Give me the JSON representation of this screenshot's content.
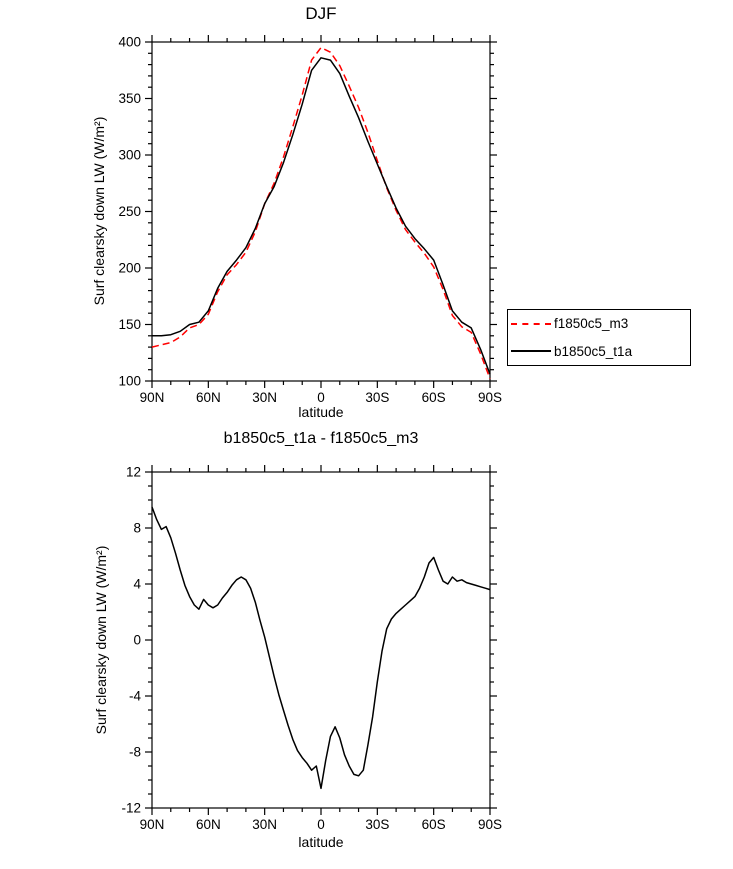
{
  "page": {
    "background": "#ffffff"
  },
  "chart_data": [
    {
      "type": "line",
      "title": "DJF",
      "xlabel": "latitude",
      "ylabel": "Surf clearsky down LW (W/m²)",
      "xlim": [
        90,
        -90
      ],
      "ylim": [
        100,
        400
      ],
      "x_major": [
        90,
        60,
        30,
        0,
        -30,
        -60,
        -90
      ],
      "x_tick_labels": [
        "90N",
        "60N",
        "30N",
        "0",
        "30S",
        "60S",
        "90S"
      ],
      "x_minor_step": 10,
      "y_major_step": 50,
      "y_minor_step": 10,
      "grid": false,
      "legend_position": "outside-right",
      "x": [
        90,
        85,
        80,
        75,
        70,
        65,
        60,
        55,
        50,
        45,
        40,
        35,
        30,
        25,
        20,
        15,
        10,
        5,
        0,
        -5,
        -10,
        -15,
        -20,
        -25,
        -30,
        -35,
        -40,
        -45,
        -50,
        -55,
        -60,
        -65,
        -70,
        -75,
        -80,
        -85,
        -90
      ],
      "series": [
        {
          "name": "f1850c5_m3",
          "color": "#ff0000",
          "dash": "7,4",
          "values": [
            130,
            132,
            134,
            139,
            147,
            150,
            159,
            179,
            194,
            203,
            214,
            232,
            257,
            275,
            298,
            325,
            353,
            384,
            395,
            391,
            379,
            361,
            342,
            320,
            295,
            271,
            251,
            234,
            223,
            213,
            201,
            181,
            158,
            148,
            143,
            124,
            102
          ]
        },
        {
          "name": "b1850c5_t1a",
          "color": "#000000",
          "dash": "",
          "values": [
            140,
            140,
            141,
            144,
            150,
            152,
            162,
            182,
            197,
            207,
            218,
            235,
            257,
            272,
            293,
            318,
            345,
            375,
            386,
            384,
            372,
            352,
            333,
            312,
            292,
            272,
            253,
            237,
            226,
            217,
            207,
            185,
            162,
            152,
            147,
            128,
            106
          ]
        }
      ]
    },
    {
      "type": "line",
      "title": "b1850c5_t1a - f1850c5_m3",
      "xlabel": "latitude",
      "ylabel": "Surf clearsky down LW (W/m²)",
      "xlim": [
        90,
        -90
      ],
      "ylim": [
        -12,
        12
      ],
      "x_major": [
        90,
        60,
        30,
        0,
        -30,
        -60,
        -90
      ],
      "x_tick_labels": [
        "90N",
        "60N",
        "30N",
        "0",
        "30S",
        "60S",
        "90S"
      ],
      "x_minor_step": 10,
      "y_major_step": 4,
      "y_minor_step": 1,
      "grid": false,
      "legend_position": "none",
      "x": [
        90,
        87.5,
        85,
        82.5,
        80,
        77.5,
        75,
        72.5,
        70,
        67.5,
        65,
        62.5,
        60,
        57.5,
        55,
        52.5,
        50,
        47.5,
        45,
        42.5,
        40,
        37.5,
        35,
        32.5,
        30,
        27.5,
        25,
        22.5,
        20,
        17.5,
        15,
        12.5,
        10,
        7.5,
        5,
        2.5,
        0,
        -2.5,
        -5,
        -7.5,
        -10,
        -12.5,
        -15,
        -17.5,
        -20,
        -22.5,
        -25,
        -27.5,
        -30,
        -32.5,
        -35,
        -37.5,
        -40,
        -42.5,
        -45,
        -47.5,
        -50,
        -52.5,
        -55,
        -57.5,
        -60,
        -62.5,
        -65,
        -67.5,
        -70,
        -72.5,
        -75,
        -77.5,
        -80,
        -82.5,
        -85,
        -87.5,
        -90
      ],
      "series": [
        {
          "name": "b1850c5_t1a - f1850c5_m3",
          "color": "#000000",
          "dash": "",
          "values": [
            9.5,
            8.6,
            7.9,
            8.1,
            7.3,
            6.2,
            5.0,
            3.9,
            3.1,
            2.5,
            2.2,
            2.9,
            2.5,
            2.3,
            2.5,
            3.0,
            3.4,
            3.9,
            4.3,
            4.5,
            4.3,
            3.7,
            2.7,
            1.4,
            0.2,
            -1.2,
            -2.6,
            -3.9,
            -5.0,
            -6.1,
            -7.1,
            -7.9,
            -8.4,
            -8.8,
            -9.3,
            -9.0,
            -10.6,
            -8.6,
            -6.9,
            -6.2,
            -7.0,
            -8.2,
            -9.0,
            -9.6,
            -9.7,
            -9.3,
            -7.5,
            -5.5,
            -3.0,
            -0.8,
            0.8,
            1.5,
            1.9,
            2.2,
            2.5,
            2.8,
            3.1,
            3.7,
            4.5,
            5.5,
            5.9,
            5.0,
            4.2,
            4.0,
            4.5,
            4.2,
            4.3,
            4.1,
            4.0,
            3.9,
            3.8,
            3.7,
            3.6
          ]
        }
      ]
    }
  ]
}
